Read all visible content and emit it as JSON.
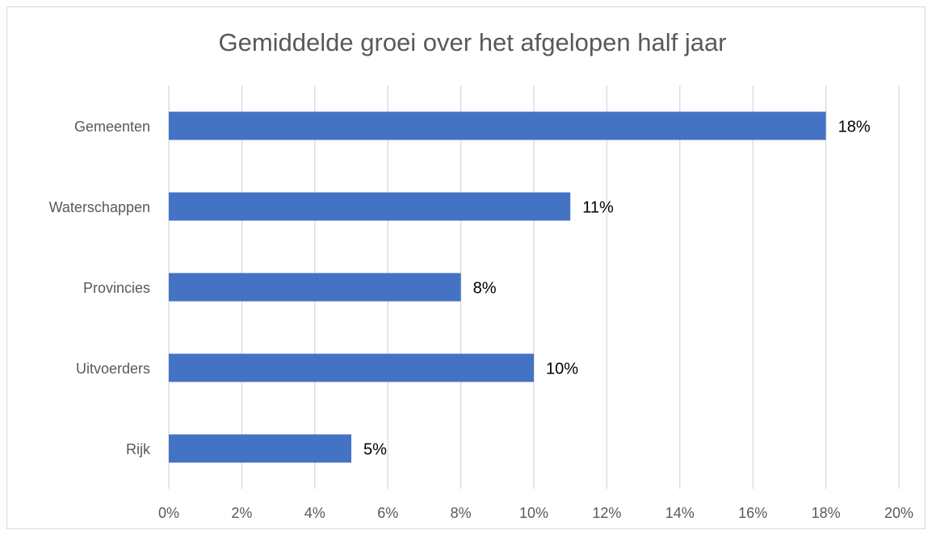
{
  "chart_data": {
    "type": "bar",
    "orientation": "horizontal",
    "title": "Gemiddelde groei over het afgelopen half jaar",
    "categories": [
      "Gemeenten",
      "Waterschappen",
      "Provincies",
      "Uitvoerders",
      "Rijk"
    ],
    "values": [
      18,
      11,
      8,
      10,
      5
    ],
    "value_labels": [
      "18%",
      "11%",
      "8%",
      "10%",
      "5%"
    ],
    "color": "#4472c4",
    "xlim": [
      0,
      20
    ],
    "xticks": [
      {
        "value": 0,
        "label": "0%"
      },
      {
        "value": 2,
        "label": "2%"
      },
      {
        "value": 4,
        "label": "4%"
      },
      {
        "value": 6,
        "label": "6%"
      },
      {
        "value": 8,
        "label": "8%"
      },
      {
        "value": 10,
        "label": "10%"
      },
      {
        "value": 12,
        "label": "12%"
      },
      {
        "value": 14,
        "label": "14%"
      },
      {
        "value": 16,
        "label": "16%"
      },
      {
        "value": 18,
        "label": "18%"
      },
      {
        "value": 20,
        "label": "20%"
      }
    ],
    "grid": true
  }
}
